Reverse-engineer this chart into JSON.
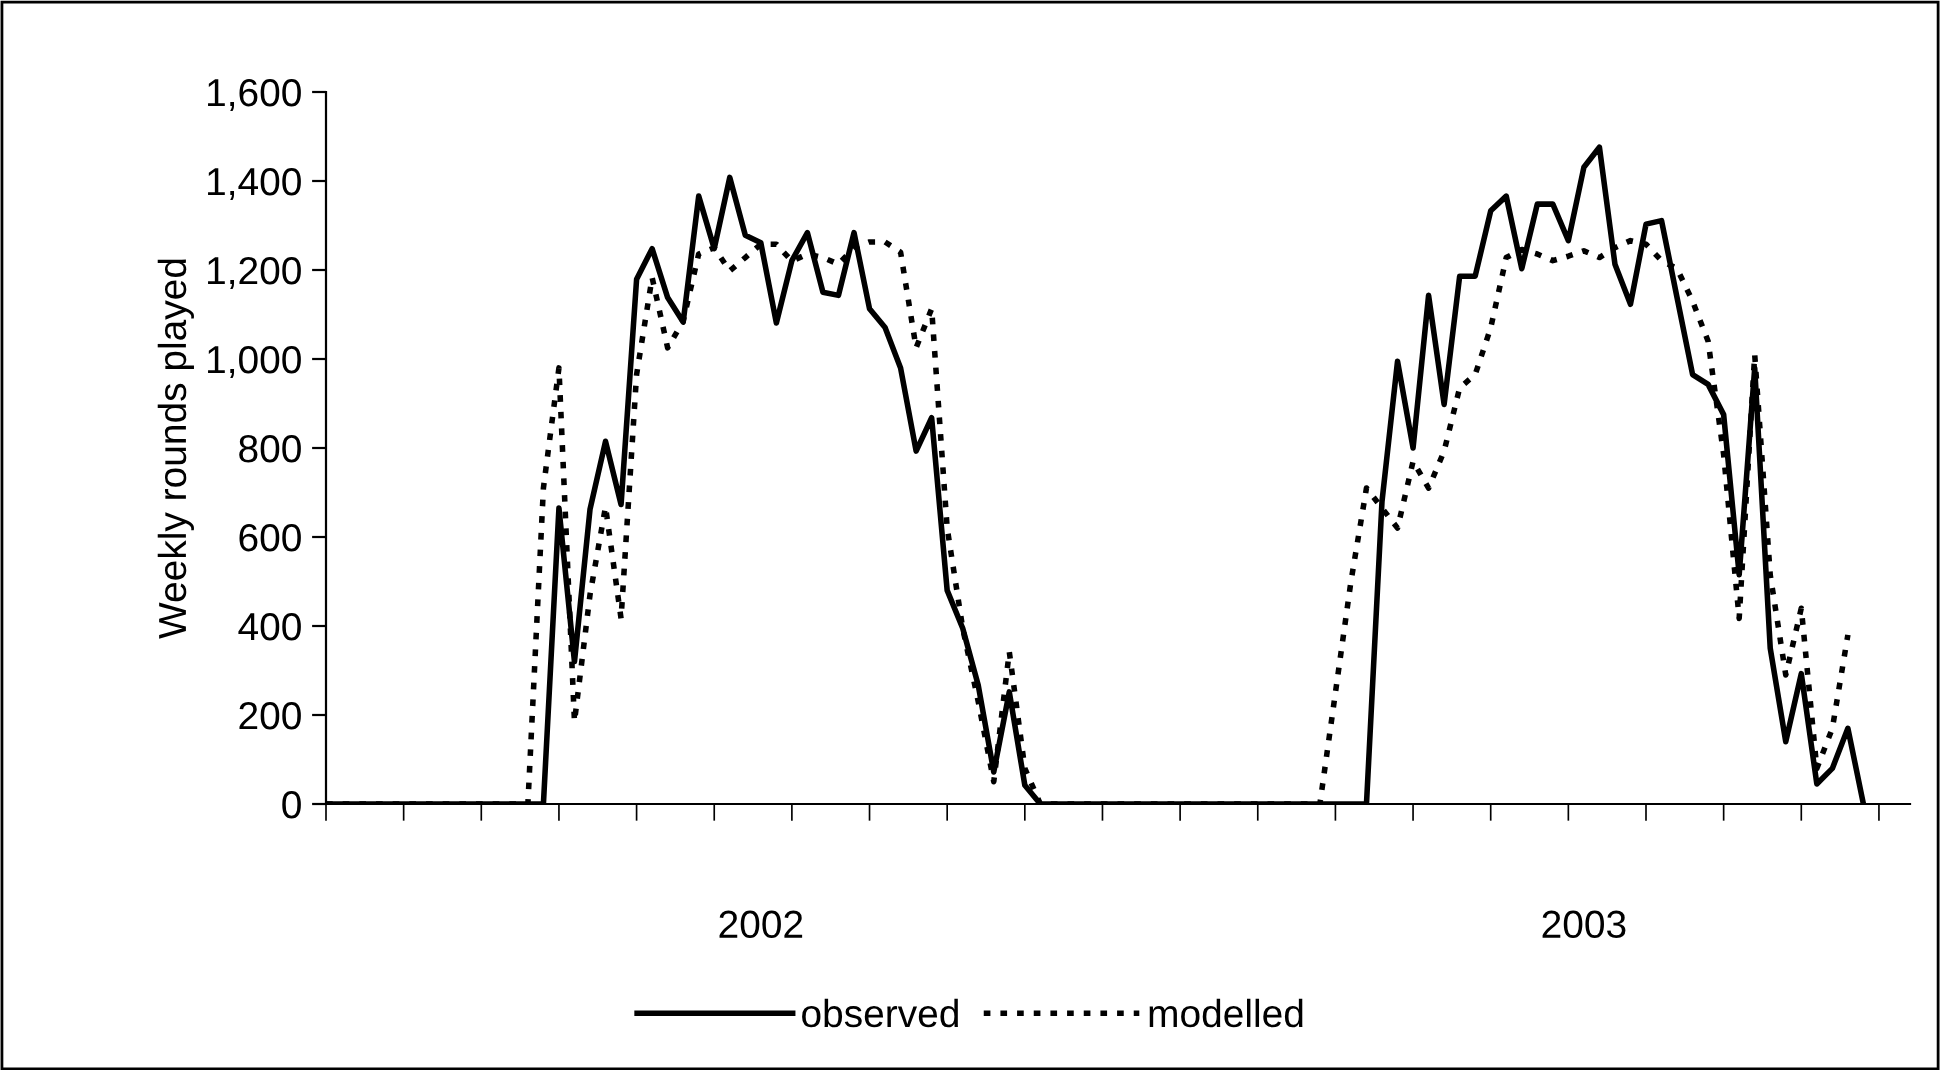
{
  "chart_data": {
    "type": "line",
    "ylabel": "Weekly rounds played",
    "categories": [
      null,
      null,
      null,
      null,
      null,
      null,
      null,
      null,
      null,
      null,
      null,
      null,
      null,
      null,
      null,
      null,
      null,
      null,
      null,
      null,
      null,
      null,
      null,
      null,
      null,
      null,
      null,
      null,
      "2002",
      null,
      null,
      null,
      null,
      null,
      null,
      null,
      null,
      null,
      null,
      null,
      null,
      null,
      null,
      null,
      null,
      null,
      null,
      null,
      null,
      null,
      null,
      null,
      null,
      null,
      null,
      null,
      null,
      null,
      null,
      null,
      null,
      null,
      null,
      null,
      null,
      null,
      null,
      null,
      null,
      null,
      null,
      null,
      null,
      null,
      null,
      null,
      null,
      null,
      null,
      null,
      null,
      "2003",
      null,
      null,
      null,
      null,
      null,
      null,
      null,
      null,
      null,
      null,
      null,
      null,
      null,
      null,
      null,
      null,
      null,
      null,
      null,
      null,
      null
    ],
    "series": [
      {
        "name": "observed",
        "color": "#000000",
        "line_style": "solid",
        "values": [
          0,
          0,
          0,
          0,
          0,
          0,
          0,
          0,
          0,
          0,
          0,
          0,
          0,
          0,
          0,
          665,
          320,
          662,
          815,
          673,
          1179,
          1248,
          1138,
          1083,
          1366,
          1248,
          1408,
          1278,
          1261,
          1081,
          1221,
          1284,
          1150,
          1143,
          1284,
          1113,
          1071,
          980,
          793,
          868,
          480,
          395,
          267,
          72,
          252,
          42,
          0,
          0,
          0,
          0,
          0,
          0,
          0,
          0,
          0,
          0,
          0,
          0,
          0,
          0,
          0,
          0,
          0,
          0,
          0,
          0,
          0,
          0,
          680,
          995,
          800,
          1143,
          898,
          1186,
          1186,
          1333,
          1366,
          1203,
          1348,
          1348,
          1266,
          1431,
          1476,
          1213,
          1123,
          1303,
          1311,
          1138,
          965,
          943,
          875,
          515,
          980,
          350,
          140,
          293,
          45,
          80,
          170,
          0,
          null,
          null,
          null
        ]
      },
      {
        "name": "modelled",
        "color": "#000000",
        "line_style": "dotted",
        "values": [
          0,
          0,
          0,
          0,
          0,
          0,
          0,
          0,
          0,
          0,
          0,
          0,
          0,
          0,
          710,
          980,
          185,
          470,
          668,
          417,
          965,
          1183,
          1025,
          1085,
          1236,
          1250,
          1198,
          1228,
          1258,
          1258,
          1220,
          1236,
          1228,
          1213,
          1250,
          1263,
          1263,
          1240,
          1025,
          1113,
          620,
          395,
          230,
          50,
          342,
          80,
          0,
          0,
          0,
          0,
          0,
          0,
          0,
          0,
          0,
          0,
          0,
          0,
          0,
          0,
          0,
          0,
          0,
          0,
          0,
          250,
          500,
          710,
          665,
          620,
          770,
          710,
          793,
          935,
          965,
          1070,
          1228,
          1246,
          1236,
          1221,
          1231,
          1243,
          1228,
          1250,
          1266,
          1258,
          1221,
          1203,
          1130,
          1040,
          785,
          417,
          1010,
          515,
          290,
          440,
          80,
          170,
          380,
          null,
          null,
          null,
          null
        ]
      }
    ],
    "ylim": [
      0,
      1600
    ],
    "yticks": [
      0,
      {
        "value": 200,
        "label": "200"
      },
      {
        "value": 400,
        "label": "400"
      },
      {
        "value": 600,
        "label": "600"
      },
      {
        "value": 800,
        "label": "800"
      },
      {
        "value": 1000,
        "label": "1,000"
      },
      {
        "value": 1200,
        "label": "1,200"
      },
      {
        "value": 1400,
        "label": "1,400"
      },
      {
        "value": 1600,
        "label": "1,600"
      }
    ],
    "grid": false,
    "legend": "bottom"
  }
}
